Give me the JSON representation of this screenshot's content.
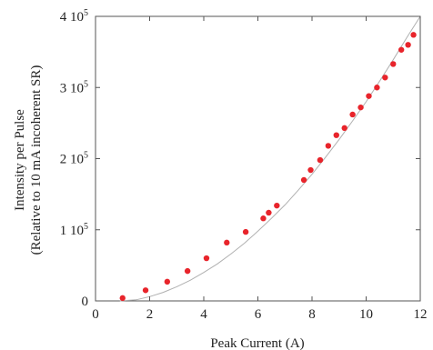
{
  "chart_data": {
    "type": "scatter",
    "title": "",
    "xlabel": "Peak Current (A)",
    "ylabel": "Intensity per Pulse",
    "ylabel_line2": "(Relative to 10 mA incoherent SR)",
    "xlim": [
      0,
      12
    ],
    "ylim": [
      0,
      400000
    ],
    "x_ticks": [
      0,
      2,
      4,
      6,
      8,
      10,
      12
    ],
    "x_tick_labels": [
      "0",
      "2",
      "4",
      "6",
      "8",
      "10",
      "12"
    ],
    "y_ticks": [
      {
        "value": 0,
        "mantissa": "0",
        "exponent": ""
      },
      {
        "value": 100000,
        "mantissa": "1 10",
        "exponent": "5"
      },
      {
        "value": 200000,
        "mantissa": "2 10",
        "exponent": "5"
      },
      {
        "value": 300000,
        "mantissa": "3 10",
        "exponent": "5"
      },
      {
        "value": 400000,
        "mantissa": "4 10",
        "exponent": "5"
      }
    ],
    "grid": false,
    "series": [
      {
        "marker_color": "#e8242b",
        "x": [
          1.0,
          1.85,
          2.65,
          3.4,
          4.1,
          4.85,
          5.55,
          6.2,
          6.4,
          6.7,
          7.7,
          7.95,
          8.3,
          8.6,
          8.9,
          9.2,
          9.5,
          9.8,
          10.1,
          10.4,
          10.7,
          11.0,
          11.3,
          11.55,
          11.75
        ],
        "y": [
          4000,
          15000,
          27000,
          42000,
          60000,
          82000,
          97000,
          116000,
          124000,
          134000,
          170000,
          184000,
          198000,
          218000,
          233000,
          243000,
          262000,
          272000,
          288000,
          300000,
          314000,
          333000,
          353000,
          360000,
          374000
        ]
      }
    ],
    "fit_curve": {
      "color": "#b0b0b0",
      "x": [
        0.9,
        1.5,
        2,
        2.5,
        3,
        3.5,
        4,
        4.5,
        5,
        5.5,
        6,
        6.5,
        7,
        7.5,
        8,
        8.5,
        9,
        9.5,
        10,
        10.5,
        11,
        11.5,
        12
      ],
      "y": [
        0,
        1500,
        6000,
        12000,
        20000,
        29000,
        40000,
        52000,
        66000,
        81000,
        98000,
        116000,
        135000,
        156000,
        178000,
        202000,
        227000,
        253000,
        280000,
        309000,
        339000,
        370000,
        402000
      ]
    }
  }
}
